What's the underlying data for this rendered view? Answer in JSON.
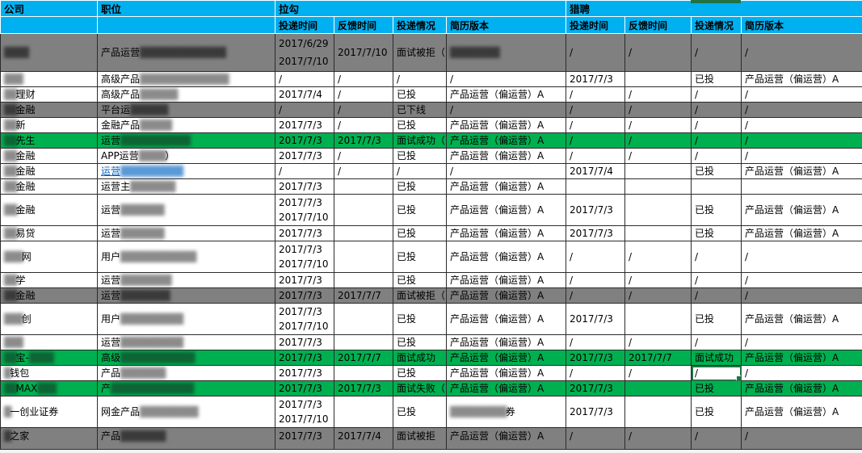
{
  "colors": {
    "header_bg": "#00B0F0",
    "row_gray": "#808080",
    "row_green": "#00B050",
    "link_blue": "#0563C1",
    "selection_green": "#217346"
  },
  "header": {
    "company": "公司",
    "position": "职位",
    "lagou": "拉勾",
    "liepin": "猎聘",
    "subheaders": [
      "投递时间",
      "反馈时间",
      "投递情况",
      "简历版本"
    ]
  },
  "rows": [
    {
      "bg": "gray",
      "first": true,
      "company": {
        "pre": "████",
        "text": "",
        "post": ""
      },
      "position": {
        "text": "产品运营",
        "blur": "███████ ████ ███",
        "tail": "",
        "link": false
      },
      "lagou": {
        "submit": [
          "2017/6/29",
          "2017/7/10"
        ],
        "feedback": "2017/7/10",
        "status": "面试被拒（",
        "resume": "",
        "resume_blur": "█████ ███",
        "resume_tail": ""
      },
      "liepin": {
        "submit": [
          "/"
        ],
        "feedback": "/",
        "status": "/",
        "resume": "/"
      }
    },
    {
      "bg": "white",
      "company": {
        "pre": "███",
        "text": "",
        "post": ""
      },
      "position": {
        "text": "高级产品",
        "blur": "███ ███ ██ ███ ███",
        "tail": "",
        "link": false
      },
      "lagou": {
        "submit": [
          "/"
        ],
        "feedback": "/",
        "status": "/",
        "resume": "/"
      },
      "liepin": {
        "submit": [
          "2017/7/3"
        ],
        "feedback": "",
        "status": "已投",
        "resume": "产品运营（偏运营）A"
      }
    },
    {
      "bg": "white",
      "company": {
        "pre": "██",
        "text": "理财",
        "post": ""
      },
      "position": {
        "text": "高级产品",
        "blur": "███ ███",
        "tail": "",
        "link": false
      },
      "lagou": {
        "submit": [
          "2017/7/4"
        ],
        "feedback": "/",
        "status": "已投",
        "resume": "产品运营（偏运营）A"
      },
      "liepin": {
        "submit": [
          "/"
        ],
        "feedback": "/",
        "status": "/",
        "resume": "/"
      }
    },
    {
      "bg": "gray",
      "company": {
        "pre": "██",
        "text": "金融",
        "post": ""
      },
      "position": {
        "text": "平台运",
        "blur": "████ ██",
        "tail": "",
        "link": false
      },
      "lagou": {
        "submit": [
          "/"
        ],
        "feedback": "/",
        "status": "已下线",
        "resume": "/"
      },
      "liepin": {
        "submit": [
          "/"
        ],
        "feedback": "/",
        "status": "/",
        "resume": "/"
      }
    },
    {
      "bg": "white",
      "company": {
        "pre": "██",
        "text": "新",
        "post": ""
      },
      "position": {
        "text": "金融产品",
        "blur": "██ ███",
        "tail": "",
        "link": false
      },
      "lagou": {
        "submit": [
          "2017/7/3"
        ],
        "feedback": "/",
        "status": "已投",
        "resume": "产品运营（偏运营）A"
      },
      "liepin": {
        "submit": [
          "/"
        ],
        "feedback": "/",
        "status": "/",
        "resume": "/"
      }
    },
    {
      "bg": "green",
      "company": {
        "pre": "██",
        "text": "先生",
        "post": ""
      },
      "position": {
        "text": "运营",
        "blur": "███ ██ ███ ███",
        "tail": "",
        "link": false
      },
      "lagou": {
        "submit": [
          "2017/7/3"
        ],
        "feedback": "2017/7/3",
        "status": "面试成功（",
        "resume": "产品运营（偏运营）A"
      },
      "liepin": {
        "submit": [
          "/"
        ],
        "feedback": "/",
        "status": "/",
        "resume": "/"
      }
    },
    {
      "bg": "white",
      "company": {
        "pre": "██",
        "text": "金融",
        "post": ""
      },
      "position": {
        "text": "APP运营",
        "blur": "██ █ █",
        "tail": "）",
        "link": false
      },
      "lagou": {
        "submit": [
          "2017/7/3"
        ],
        "feedback": "/",
        "status": "已投",
        "resume": "产品运营（偏运营）A"
      },
      "liepin": {
        "submit": [
          "/"
        ],
        "feedback": "/",
        "status": "/",
        "resume": "/"
      }
    },
    {
      "bg": "white",
      "company": {
        "pre": "██",
        "text": "金融",
        "post": ""
      },
      "position": {
        "text": "运营",
        "blur": "████ ██ ████",
        "tail": "",
        "link": true
      },
      "lagou": {
        "submit": [
          "/"
        ],
        "feedback": "/",
        "status": "/",
        "resume": "/"
      },
      "liepin": {
        "submit": [
          "2017/7/4"
        ],
        "feedback": "",
        "status": "已投",
        "resume": "产品运营（偏运营）A"
      }
    },
    {
      "bg": "white",
      "company": {
        "pre": "██",
        "text": "金融",
        "post": ""
      },
      "position": {
        "text": "运营主",
        "blur": "███ ██ ██",
        "tail": "",
        "link": false
      },
      "lagou": {
        "submit": [
          "2017/7/3"
        ],
        "feedback": "",
        "status": "已投",
        "resume": "产品运营（偏运营）A"
      },
      "liepin": {
        "submit": [
          ""
        ],
        "feedback": "",
        "status": "",
        "resume": ""
      }
    },
    {
      "bg": "white",
      "company": {
        "pre": "██",
        "text": "金融",
        "post": ""
      },
      "position": {
        "text": "运营",
        "blur": "████ ███",
        "tail": "",
        "link": false
      },
      "lagou": {
        "submit": [
          "2017/7/3",
          "2017/7/10"
        ],
        "feedback": "",
        "status": "已投",
        "resume": "产品运营（偏运营）A"
      },
      "liepin": {
        "submit": [
          "2017/7/3"
        ],
        "feedback": "",
        "status": "已投",
        "resume": "产品运营（偏运营）A"
      }
    },
    {
      "bg": "white",
      "company": {
        "pre": "██",
        "text": "易贷",
        "post": ""
      },
      "position": {
        "text": "运营",
        "blur": "████ ███",
        "tail": "",
        "link": false
      },
      "lagou": {
        "submit": [
          "2017/7/3"
        ],
        "feedback": "",
        "status": "已投",
        "resume": "产品运营（偏运营）A"
      },
      "liepin": {
        "submit": [
          "2017/7/3"
        ],
        "feedback": "",
        "status": "已投",
        "resume": "产品运营（偏运营）A"
      }
    },
    {
      "bg": "white",
      "company": {
        "pre": "███",
        "text": "网",
        "post": ""
      },
      "position": {
        "text": "用户",
        "blur": "█████ ███ █ ███",
        "tail": "",
        "link": false
      },
      "lagou": {
        "submit": [
          "2017/7/3",
          "2017/7/10"
        ],
        "feedback": "",
        "status": "已投",
        "resume": "产品运营（偏运营）A"
      },
      "liepin": {
        "submit": [
          "/"
        ],
        "feedback": "/",
        "status": "/",
        "resume": "/"
      }
    },
    {
      "bg": "white",
      "company": {
        "pre": "██",
        "text": "学",
        "post": ""
      },
      "position": {
        "text": "运营",
        "blur": "███ ██ ███",
        "tail": "",
        "link": false
      },
      "lagou": {
        "submit": [
          "2017/7/3"
        ],
        "feedback": "",
        "status": "已投",
        "resume": "产品运营（偏运营）A"
      },
      "liepin": {
        "submit": [
          "/"
        ],
        "feedback": "/",
        "status": "/",
        "resume": "/"
      }
    },
    {
      "bg": "gray",
      "company": {
        "pre": "██",
        "text": "金融",
        "post": ""
      },
      "position": {
        "text": "运营",
        "blur": "█████ ███",
        "tail": "",
        "link": false
      },
      "lagou": {
        "submit": [
          "2017/7/3"
        ],
        "feedback": "2017/7/7",
        "status": "面试被拒（",
        "resume": "产品运营（偏运营）A"
      },
      "liepin": {
        "submit": [
          "/"
        ],
        "feedback": "/",
        "status": "/",
        "resume": "/"
      }
    },
    {
      "bg": "white",
      "company": {
        "pre": "███",
        "text": "创",
        "post": ""
      },
      "position": {
        "text": "用户",
        "blur": "████ ███ ███",
        "tail": "",
        "link": false
      },
      "lagou": {
        "submit": [
          "2017/7/3",
          "2017/7/10"
        ],
        "feedback": "",
        "status": "已投",
        "resume": "产品运营（偏运营）A"
      },
      "liepin": {
        "submit": [
          "2017/7/3"
        ],
        "feedback": "",
        "status": "已投",
        "resume": "产品运营（偏运营）A"
      }
    },
    {
      "bg": "white",
      "company": {
        "pre": "███",
        "text": "",
        "post": ""
      },
      "position": {
        "text": "运营",
        "blur": "████ ███ ███",
        "tail": "",
        "link": false
      },
      "lagou": {
        "submit": [
          "2017/7/3"
        ],
        "feedback": "",
        "status": "已投",
        "resume": "产品运营（偏运营）A"
      },
      "liepin": {
        "submit": [
          "/"
        ],
        "feedback": "/",
        "status": "/",
        "resume": "/"
      }
    },
    {
      "bg": "green",
      "company": {
        "pre": "██",
        "text": "宝-",
        "post": "████"
      },
      "position": {
        "text": "高级",
        "blur": "██████ ███ ███",
        "tail": "",
        "link": false
      },
      "lagou": {
        "submit": [
          "2017/7/3"
        ],
        "feedback": "2017/7/7",
        "status": "面试成功",
        "resume": "产品运营（偏运营）A"
      },
      "liepin": {
        "submit": [
          "2017/7/3"
        ],
        "feedback": "2017/7/7",
        "status": "面试成功",
        "resume": "产品运营（偏运营）A"
      }
    },
    {
      "bg": "white",
      "company": {
        "pre": "█",
        "text": "钱包",
        "post": ""
      },
      "position": {
        "text": "产品",
        "blur": "███ ██ ██",
        "tail": "",
        "link": false
      },
      "lagou": {
        "submit": [
          "2017/7/3"
        ],
        "feedback": "",
        "status": "已投",
        "resume": "产品运营（偏运营）A"
      },
      "liepin": {
        "submit": [
          "/"
        ],
        "feedback": "/",
        "status": "/",
        "resume": "/",
        "selected": "status"
      }
    },
    {
      "bg": "green",
      "company": {
        "pre": "██",
        "text": "MAX",
        "post": "███"
      },
      "position": {
        "text": "产",
        "blur": "████ █ ████ ██ ██",
        "tail": "",
        "link": false
      },
      "lagou": {
        "submit": [
          "2017/7/3"
        ],
        "feedback": "2017/7/3",
        "status": "面试失败（",
        "resume": "产品运营（偏运营）A"
      },
      "liepin": {
        "submit": [
          "2017/7/3"
        ],
        "feedback": "",
        "status": "已投",
        "resume": "产品运营（偏运营）A"
      }
    },
    {
      "bg": "white",
      "company": {
        "pre": "█",
        "text": "一创业证券",
        "post": ""
      },
      "position": {
        "text": "网金产品",
        "blur": "████ ██ █ ██",
        "tail": "",
        "link": false
      },
      "lagou": {
        "submit": [
          "2017/7/3",
          "2017/7/10"
        ],
        "feedback": "",
        "status": "已投",
        "resume": "",
        "resume_blur": "████ █ ████",
        "resume_tail": "券"
      },
      "liepin": {
        "submit": [
          "2017/7/3"
        ],
        "feedback": "",
        "status": "已投",
        "resume": "产品运营（偏运营）A"
      }
    },
    {
      "bg": "gray",
      "last": true,
      "company": {
        "pre": "█",
        "text": "之家",
        "post": ""
      },
      "position": {
        "text": "产品",
        "blur": "███ ██ ██",
        "tail": "",
        "link": false
      },
      "lagou": {
        "submit": [
          "2017/7/3"
        ],
        "feedback": "2017/7/4",
        "status": "面试被拒",
        "resume": "产品运营（偏运营）A"
      },
      "liepin": {
        "submit": [
          "/"
        ],
        "feedback": "/",
        "status": "/",
        "resume": "/"
      }
    }
  ]
}
